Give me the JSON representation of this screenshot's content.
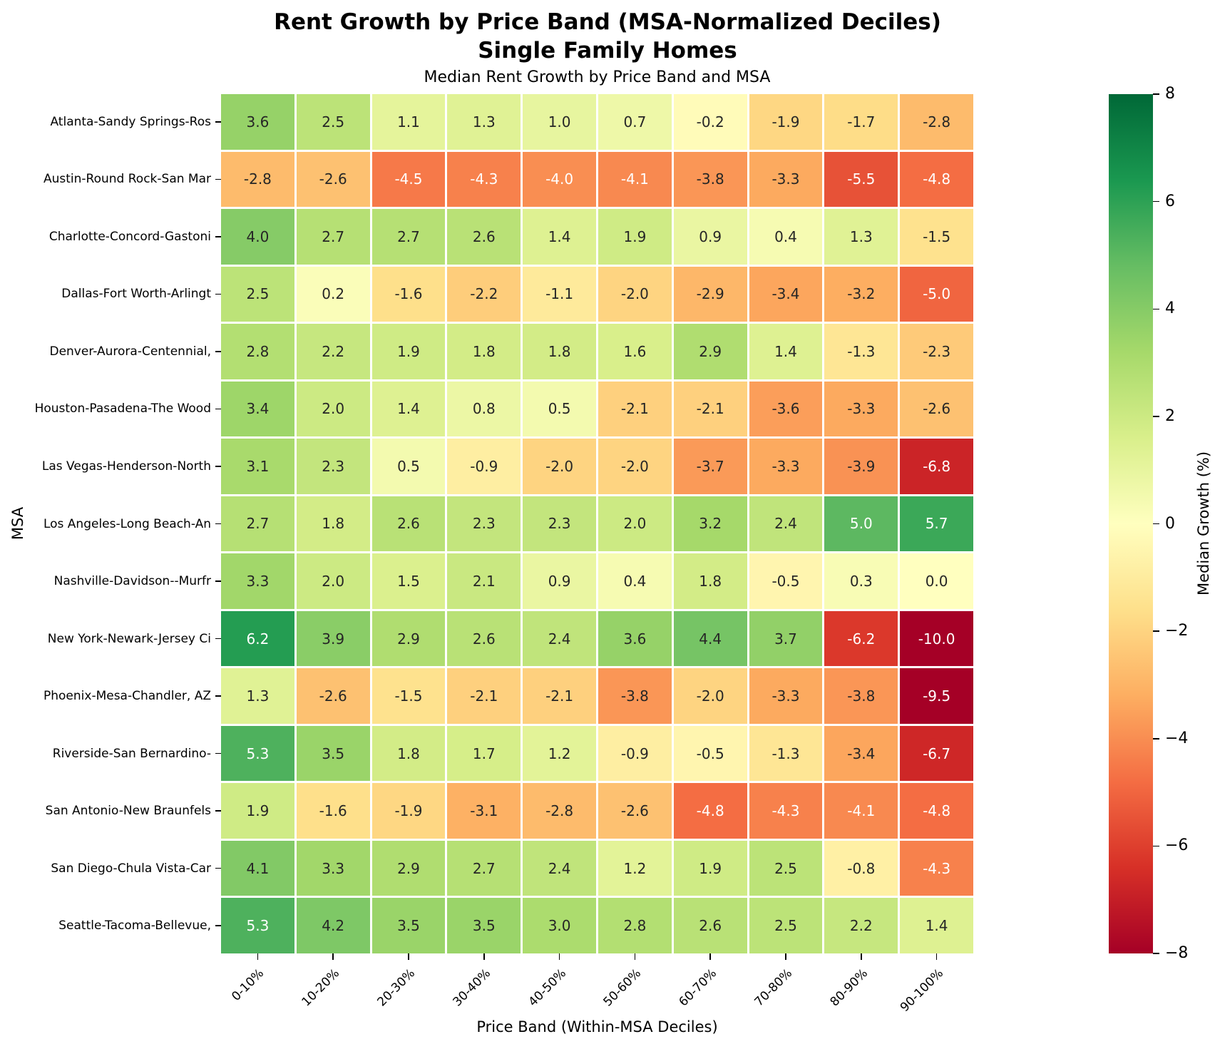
{
  "title_line1": "Rent Growth by Price Band (MSA-Normalized Deciles)",
  "title_line2": "Single Family Homes",
  "chart_data": {
    "type": "heatmap",
    "title": "Median Rent Growth by Price Band and MSA",
    "xlabel": "Price Band (Within-MSA Deciles)",
    "ylabel": "MSA",
    "colorbar_label": "Median Growth (%)",
    "colorbar_tick_labels": [
      "8",
      "6",
      "4",
      "2",
      "0",
      "−2",
      "−4",
      "−6",
      "−8"
    ],
    "vmin": -8,
    "vmax": 8,
    "colormap": "RdYlGn",
    "colormap_colors": [
      "#a50026",
      "#d73027",
      "#f46d43",
      "#fdae61",
      "#fee08b",
      "#ffffbf",
      "#d9ef8b",
      "#a6d96a",
      "#66bd63",
      "#1a9850",
      "#006837"
    ],
    "annotation_dark_color": "#262626",
    "annotation_light_color": "#ffffff",
    "gridline_color": "#ffffff",
    "categories": [
      "0-10%",
      "10-20%",
      "20-30%",
      "30-40%",
      "40-50%",
      "50-60%",
      "60-70%",
      "70-80%",
      "80-90%",
      "90-100%"
    ],
    "series": [
      {
        "name": "Atlanta-Sandy Springs-Ros",
        "values": [
          3.6,
          2.5,
          1.1,
          1.3,
          1.0,
          0.7,
          -0.2,
          -1.9,
          -1.7,
          -2.8
        ]
      },
      {
        "name": "Austin-Round Rock-San Mar",
        "values": [
          -2.8,
          -2.6,
          -4.5,
          -4.3,
          -4.0,
          -4.1,
          -3.8,
          -3.3,
          -5.5,
          -4.8
        ]
      },
      {
        "name": "Charlotte-Concord-Gastoni",
        "values": [
          4.0,
          2.7,
          2.7,
          2.6,
          1.4,
          1.9,
          0.9,
          0.4,
          1.3,
          -1.5
        ]
      },
      {
        "name": "Dallas-Fort Worth-Arlingt",
        "values": [
          2.5,
          0.2,
          -1.6,
          -2.2,
          -1.1,
          -2.0,
          -2.9,
          -3.4,
          -3.2,
          -5.0
        ]
      },
      {
        "name": "Denver-Aurora-Centennial,",
        "values": [
          2.8,
          2.2,
          1.9,
          1.8,
          1.8,
          1.6,
          2.9,
          1.4,
          -1.3,
          -2.3
        ]
      },
      {
        "name": "Houston-Pasadena-The Wood",
        "values": [
          3.4,
          2.0,
          1.4,
          0.8,
          0.5,
          -2.1,
          -2.1,
          -3.6,
          -3.3,
          -2.6
        ]
      },
      {
        "name": "Las Vegas-Henderson-North",
        "values": [
          3.1,
          2.3,
          0.5,
          -0.9,
          -2.0,
          -2.0,
          -3.7,
          -3.3,
          -3.9,
          -6.8
        ]
      },
      {
        "name": "Los Angeles-Long Beach-An",
        "values": [
          2.7,
          1.8,
          2.6,
          2.3,
          2.3,
          2.0,
          3.2,
          2.4,
          5.0,
          5.7
        ]
      },
      {
        "name": "Nashville-Davidson--Murfr",
        "values": [
          3.3,
          2.0,
          1.5,
          2.1,
          0.9,
          0.4,
          1.8,
          -0.5,
          0.3,
          -0.0
        ]
      },
      {
        "name": "New York-Newark-Jersey Ci",
        "values": [
          6.2,
          3.9,
          2.9,
          2.6,
          2.4,
          3.6,
          4.4,
          3.7,
          -6.2,
          -10.0
        ]
      },
      {
        "name": "Phoenix-Mesa-Chandler, AZ",
        "values": [
          1.3,
          -2.6,
          -1.5,
          -2.1,
          -2.1,
          -3.8,
          -2.0,
          -3.3,
          -3.8,
          -9.5
        ]
      },
      {
        "name": "Riverside-San Bernardino-",
        "values": [
          5.3,
          3.5,
          1.8,
          1.7,
          1.2,
          -0.9,
          -0.5,
          -1.3,
          -3.4,
          -6.7
        ]
      },
      {
        "name": "San Antonio-New Braunfels",
        "values": [
          1.9,
          -1.6,
          -1.9,
          -3.1,
          -2.8,
          -2.6,
          -4.8,
          -4.3,
          -4.1,
          -4.8
        ]
      },
      {
        "name": "San Diego-Chula Vista-Car",
        "values": [
          4.1,
          3.3,
          2.9,
          2.7,
          2.4,
          1.2,
          1.9,
          2.5,
          -0.8,
          -4.3
        ]
      },
      {
        "name": "Seattle-Tacoma-Bellevue,",
        "values": [
          5.3,
          4.2,
          3.5,
          3.5,
          3.0,
          2.8,
          2.6,
          2.5,
          2.2,
          1.4
        ]
      }
    ]
  }
}
